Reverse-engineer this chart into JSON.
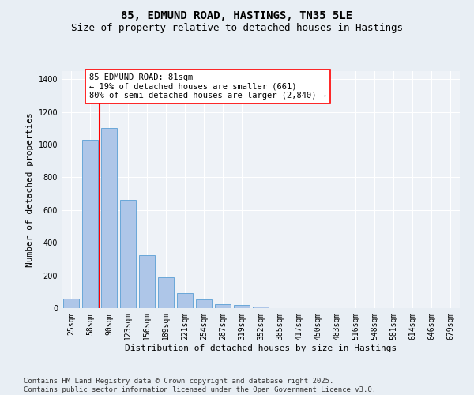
{
  "title1": "85, EDMUND ROAD, HASTINGS, TN35 5LE",
  "title2": "Size of property relative to detached houses in Hastings",
  "xlabel": "Distribution of detached houses by size in Hastings",
  "ylabel": "Number of detached properties",
  "categories": [
    "25sqm",
    "58sqm",
    "90sqm",
    "123sqm",
    "156sqm",
    "189sqm",
    "221sqm",
    "254sqm",
    "287sqm",
    "319sqm",
    "352sqm",
    "385sqm",
    "417sqm",
    "450sqm",
    "483sqm",
    "516sqm",
    "548sqm",
    "581sqm",
    "614sqm",
    "646sqm",
    "679sqm"
  ],
  "values": [
    60,
    1030,
    1100,
    660,
    325,
    190,
    90,
    55,
    25,
    18,
    12,
    0,
    0,
    0,
    0,
    0,
    0,
    0,
    0,
    0,
    0
  ],
  "bar_color": "#aec6e8",
  "bar_edge_color": "#5a9fd4",
  "vline_color": "red",
  "annotation_text": "85 EDMUND ROAD: 81sqm\n← 19% of detached houses are smaller (661)\n80% of semi-detached houses are larger (2,840) →",
  "annotation_box_color": "white",
  "annotation_box_edge": "red",
  "ylim": [
    0,
    1450
  ],
  "yticks": [
    0,
    200,
    400,
    600,
    800,
    1000,
    1200,
    1400
  ],
  "background_color": "#e8eef4",
  "plot_bg_color": "#eef2f7",
  "footer": "Contains HM Land Registry data © Crown copyright and database right 2025.\nContains public sector information licensed under the Open Government Licence v3.0.",
  "title_fontsize": 10,
  "subtitle_fontsize": 9,
  "label_fontsize": 8,
  "tick_fontsize": 7,
  "footer_fontsize": 6.5,
  "annot_fontsize": 7.5
}
